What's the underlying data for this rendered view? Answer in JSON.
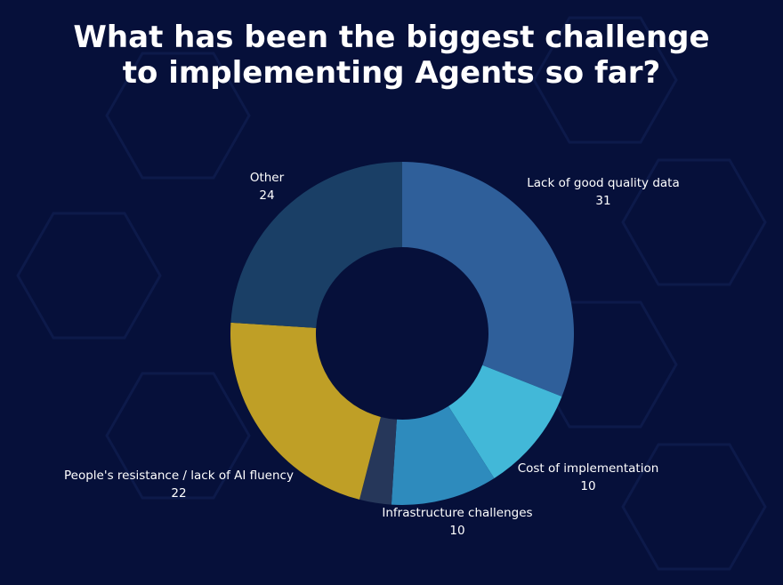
{
  "chart_data": {
    "type": "donut",
    "title": "What has been the biggest challenge to implementing Agents so far?",
    "categories": [
      "Lack of good quality data",
      "Cost of implementation",
      "Infrastructure challenges",
      null,
      "People's resistance / lack of AI fluency",
      "Other"
    ],
    "values": [
      31,
      10,
      10,
      3,
      22,
      24
    ],
    "colors": [
      "#2f5f9a",
      "#42b8d8",
      "#2e8bbd",
      "#26375a",
      "#bf9f26",
      "#1a3f66"
    ]
  }
}
